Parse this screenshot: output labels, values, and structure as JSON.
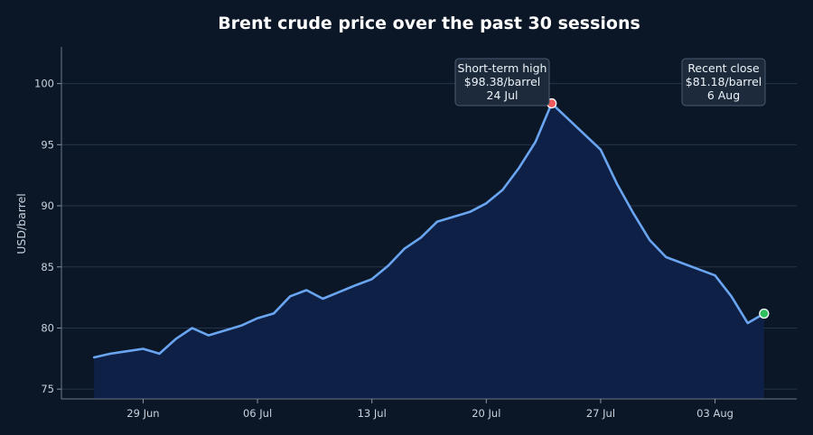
{
  "chart_data": {
    "type": "area",
    "title": "Brent crude price over the past 30 sessions",
    "xlabel": "",
    "ylabel": "USD/barrel",
    "x_ticks": [
      "29 Jun",
      "06 Jul",
      "13 Jul",
      "20 Jul",
      "27 Jul",
      "03 Aug"
    ],
    "y_ticks": [
      75,
      80,
      85,
      90,
      95,
      100
    ],
    "ylim": [
      74.2,
      103
    ],
    "grid": "horizontal",
    "dates": [
      "2025-06-26",
      "2025-06-27",
      "2025-06-28",
      "2025-06-29",
      "2025-06-30",
      "2025-07-01",
      "2025-07-02",
      "2025-07-03",
      "2025-07-05",
      "2025-07-06",
      "2025-07-07",
      "2025-07-08",
      "2025-07-09",
      "2025-07-10",
      "2025-07-12",
      "2025-07-13",
      "2025-07-14",
      "2025-07-15",
      "2025-07-16",
      "2025-07-17",
      "2025-07-19",
      "2025-07-20",
      "2025-07-21",
      "2025-07-22",
      "2025-07-23",
      "2025-07-24",
      "2025-07-27",
      "2025-07-28",
      "2025-07-29",
      "2025-07-30",
      "2025-07-31",
      "2025-08-03",
      "2025-08-04",
      "2025-08-05",
      "2025-08-06"
    ],
    "series": [
      {
        "name": "",
        "values": [
          77.6,
          77.9,
          78.1,
          78.3,
          77.9,
          79.1,
          80.0,
          79.4,
          80.2,
          80.8,
          81.2,
          82.6,
          83.1,
          82.4,
          83.5,
          84.0,
          85.1,
          86.5,
          87.4,
          88.7,
          89.5,
          90.2,
          91.3,
          93.1,
          95.2,
          98.38,
          94.6,
          91.8,
          89.4,
          87.2,
          85.8,
          84.3,
          82.6,
          80.4,
          81.18
        ]
      }
    ],
    "annotations": [
      {
        "lines": [
          "Short-term high",
          "$98.38/barrel",
          "24 Jul"
        ],
        "point_index": 25
      },
      {
        "lines": [
          "Recent close",
          "$81.18/barrel",
          "6 Aug"
        ],
        "point_index": 34
      }
    ],
    "colors": {
      "background": "#0b1727",
      "line": "#6aa5f2",
      "area": "#0f2147",
      "grid": "#24344a",
      "high_marker": "#f05a5a",
      "close_marker": "#2fbf5e",
      "annotation_bg": "#1c2a3c",
      "annotation_border": "#4a5b70"
    }
  }
}
